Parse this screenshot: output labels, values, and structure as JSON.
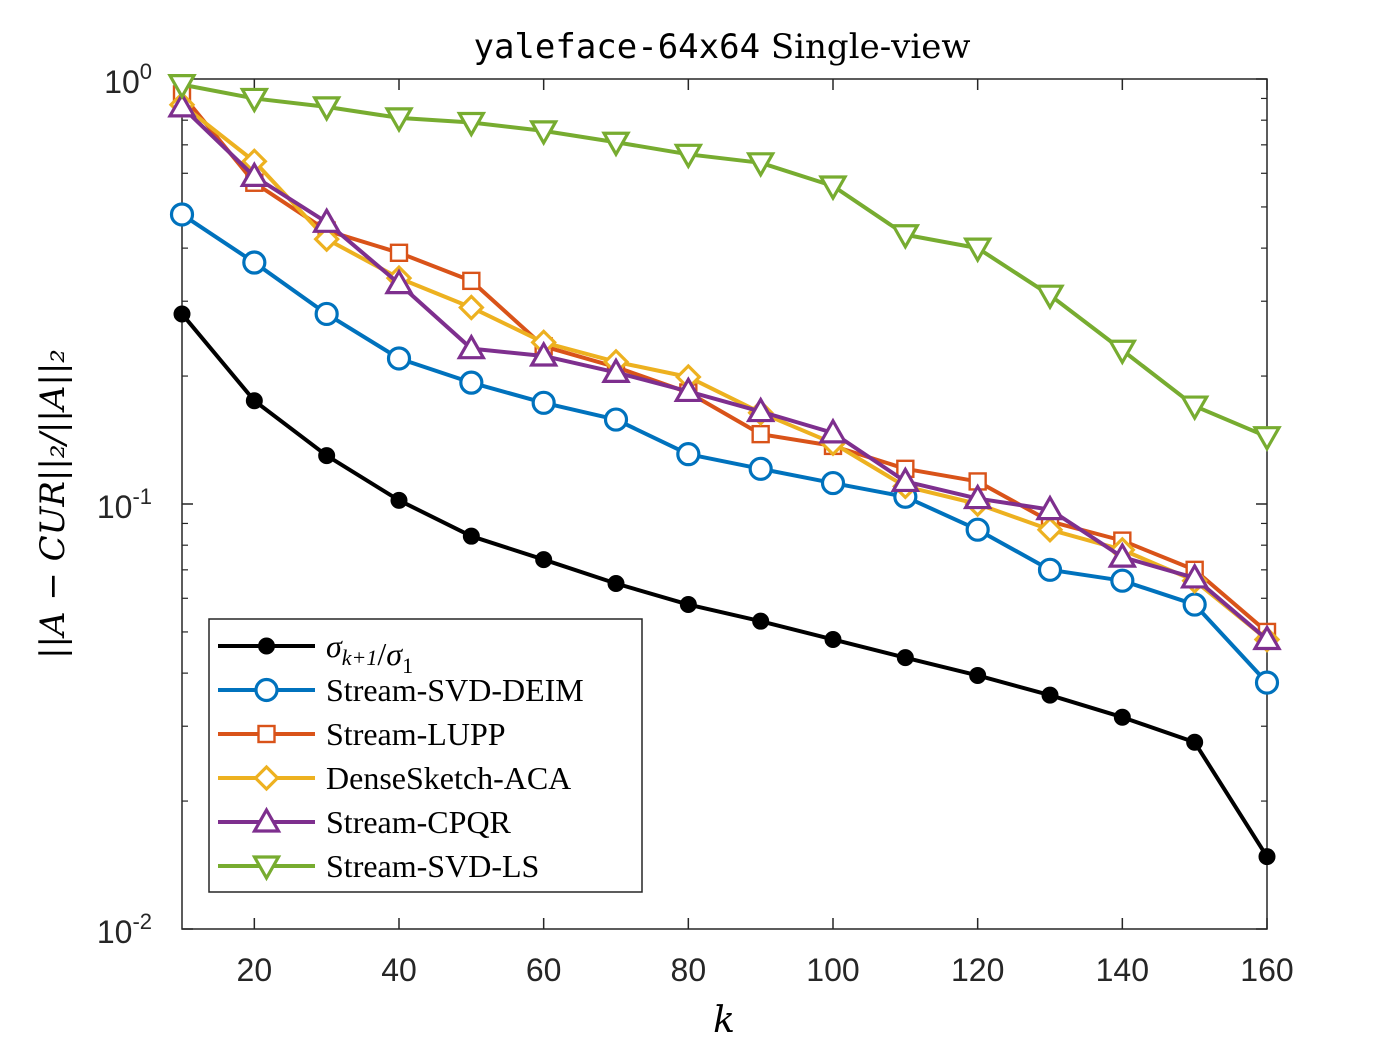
{
  "chart_data": {
    "type": "line",
    "title_code": "yaleface-64x64",
    "title_rest": " Single-view",
    "xlabel": "k",
    "ylabel": "||A − CUR||₂/||A||₂",
    "yscale": "log",
    "xlim": [
      10,
      160
    ],
    "ylim": [
      0.01,
      1
    ],
    "xticks": [
      20,
      40,
      60,
      80,
      100,
      120,
      140,
      160
    ],
    "xtick_labels": [
      "20",
      "40",
      "60",
      "80",
      "100",
      "120",
      "140",
      "160"
    ],
    "yticks": [
      0.01,
      0.1,
      1
    ],
    "ytick_labels": [
      {
        "base": "10",
        "exp": "-2"
      },
      {
        "base": "10",
        "exp": "-1"
      },
      {
        "base": "10",
        "exp": "0"
      }
    ],
    "legend_position": "bottom-left",
    "grid": false,
    "x": [
      10,
      20,
      30,
      40,
      50,
      60,
      70,
      80,
      90,
      100,
      110,
      120,
      130,
      140,
      150,
      160
    ],
    "series": [
      {
        "name": "σk+1/σ1",
        "color": "#000000",
        "marker": "filled-circle",
        "values": [
          0.28,
          0.175,
          0.13,
          0.102,
          0.084,
          0.074,
          0.065,
          0.058,
          0.053,
          0.048,
          0.0435,
          0.0395,
          0.0355,
          0.0315,
          0.0275,
          0.0148
        ]
      },
      {
        "name": "Stream-SVD-DEIM",
        "color": "#0072BD",
        "marker": "circle",
        "values": [
          0.48,
          0.37,
          0.28,
          0.22,
          0.193,
          0.173,
          0.158,
          0.131,
          0.121,
          0.112,
          0.104,
          0.087,
          0.07,
          0.066,
          0.058,
          0.038
        ]
      },
      {
        "name": "Stream-LUPP",
        "color": "#D95319",
        "marker": "square",
        "values": [
          0.92,
          0.57,
          0.44,
          0.39,
          0.335,
          0.235,
          0.21,
          0.183,
          0.146,
          0.137,
          0.121,
          0.113,
          0.091,
          0.082,
          0.07,
          0.05
        ]
      },
      {
        "name": "DenseSketch-ACA",
        "color": "#EDB120",
        "marker": "diamond",
        "values": [
          0.87,
          0.64,
          0.42,
          0.34,
          0.29,
          0.24,
          0.216,
          0.199,
          0.164,
          0.139,
          0.11,
          0.1,
          0.087,
          0.078,
          0.066,
          0.048
        ]
      },
      {
        "name": "Stream-CPQR",
        "color": "#7E2F8E",
        "marker": "triangle-up",
        "values": [
          0.86,
          0.59,
          0.46,
          0.33,
          0.232,
          0.223,
          0.204,
          0.184,
          0.165,
          0.147,
          0.113,
          0.103,
          0.097,
          0.075,
          0.067,
          0.048
        ]
      },
      {
        "name": "Stream-SVD-LS",
        "color": "#77AC30",
        "marker": "triangle-down",
        "values": [
          0.97,
          0.9,
          0.86,
          0.81,
          0.79,
          0.755,
          0.71,
          0.665,
          0.635,
          0.56,
          0.43,
          0.4,
          0.31,
          0.23,
          0.17,
          0.144
        ]
      }
    ]
  }
}
